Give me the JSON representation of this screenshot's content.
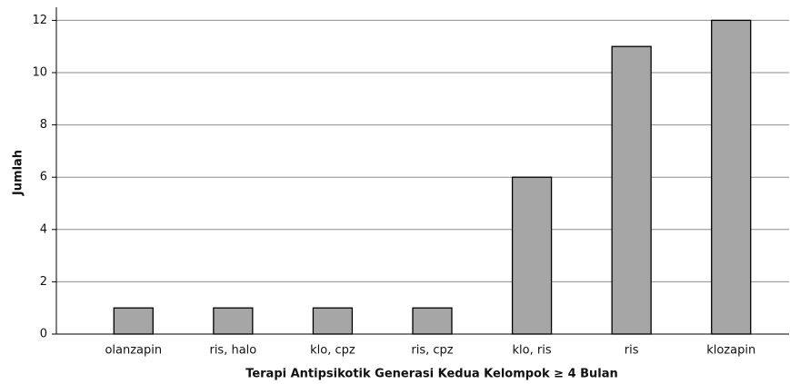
{
  "chart_data": {
    "type": "bar",
    "x_label": "Terapi Antipsikotik Generasi Kedua Kelompok ≥ 4 Bulan",
    "y_label": "Jumlah",
    "categories": [
      "olanzapin",
      "ris, halo",
      "klo, cpz",
      "ris, cpz",
      "klo, ris",
      "ris",
      "klozapin"
    ],
    "values": [
      1,
      1,
      1,
      1,
      6,
      11,
      12
    ],
    "color": "#a6a6a6",
    "ylim": [
      0,
      12.5
    ],
    "yticks": [
      0,
      2,
      4,
      6,
      8,
      10,
      12
    ],
    "grid": true
  }
}
